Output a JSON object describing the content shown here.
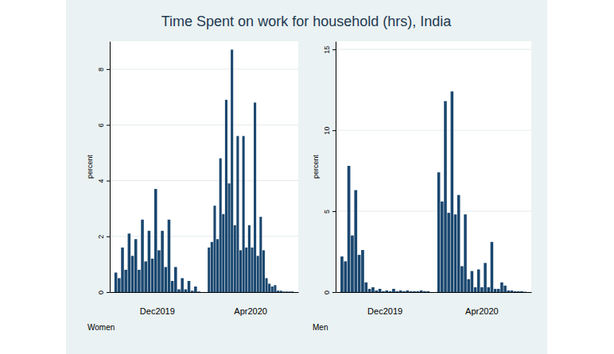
{
  "title": "Time Spent on work for household (hrs), India",
  "chart_data": [
    {
      "type": "bar",
      "annotation": "Women",
      "ylabel": "percent",
      "ylim": [
        0,
        9
      ],
      "yticks": [
        0,
        2,
        4,
        6,
        8
      ],
      "grid": true,
      "color": "#1a476f",
      "groups": [
        {
          "label": "Dec2019",
          "values": [
            0.7,
            0.5,
            1.6,
            0.8,
            2.1,
            1.3,
            1.9,
            0.8,
            2.6,
            1.1,
            2.2,
            1.2,
            3.7,
            1.5,
            2.2,
            0.9,
            2.6,
            0.4,
            0.9,
            0.1,
            0.5,
            0.1,
            0.4,
            0.05,
            0.2,
            0.02
          ]
        },
        {
          "label": "Apr2020",
          "values": [
            1.6,
            1.8,
            3.1,
            1.9,
            4.8,
            2.8,
            6.9,
            3.9,
            8.7,
            2.4,
            5.6,
            1.5,
            5.6,
            1.6,
            2.4,
            1.6,
            6.8,
            1.3,
            2.7,
            1.5,
            0.5,
            0.3,
            0.2,
            0.25,
            0.05,
            0.05,
            0.02,
            0.02,
            0.02,
            0.02
          ]
        }
      ]
    },
    {
      "type": "bar",
      "annotation": "Men",
      "ylabel": "percent",
      "ylim": [
        0,
        15.5
      ],
      "yticks": [
        0,
        5,
        10,
        15
      ],
      "grid": true,
      "color": "#1a476f",
      "groups": [
        {
          "label": "Dec2019",
          "values": [
            2.2,
            1.9,
            7.8,
            3.5,
            6.3,
            2.3,
            2.6,
            0.6,
            0.2,
            0.3,
            0.1,
            0.2,
            0.05,
            0.1,
            0.05,
            0.2,
            0.05,
            0.1,
            0.05,
            0.1,
            0.05,
            0.05,
            0.05,
            0.1,
            0.05,
            0.05
          ]
        },
        {
          "label": "Apr2020",
          "values": [
            7.4,
            5.6,
            11.8,
            4.9,
            12.4,
            4.8,
            6.0,
            1.6,
            4.8,
            0.8,
            1.3,
            0.3,
            1.4,
            0.3,
            1.8,
            0.3,
            3.1,
            0.2,
            0.2,
            0.6,
            0.4,
            0.1,
            0.1,
            0.05,
            0.05,
            0.05,
            0.02
          ]
        }
      ]
    }
  ]
}
